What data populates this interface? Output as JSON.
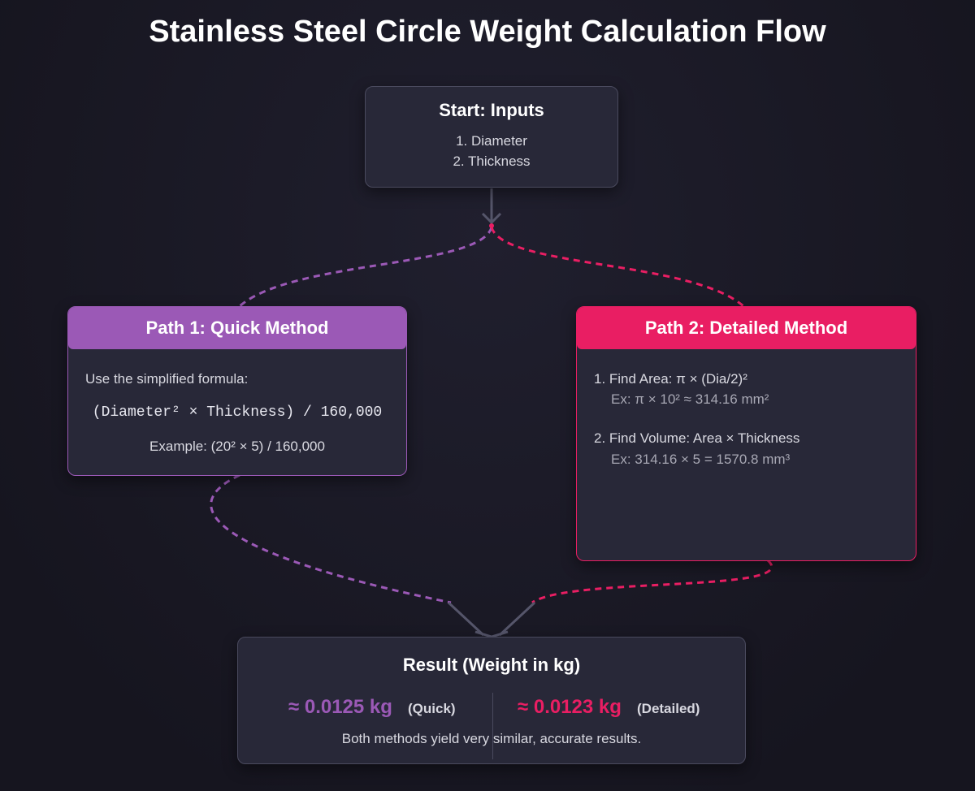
{
  "title": "Stainless Steel Circle Weight Calculation Flow",
  "start": {
    "title": "Start: Inputs",
    "lines": [
      "1. Diameter",
      "2. Thickness"
    ]
  },
  "path1": {
    "title": "Path 1: Quick Method",
    "intro": "Use the simplified formula:",
    "formula": "(Diameter² × Thickness) / 160,000",
    "example": "Example: (20² × 5) / 160,000"
  },
  "path2": {
    "title": "Path 2: Detailed Method",
    "steps": [
      {
        "label": "1. Find Area: π × (Dia/2)²",
        "example": "Ex: π × 10² ≈ 314.16 mm²"
      },
      {
        "label": "2. Find Volume: Area × Thickness",
        "example": "Ex: 314.16 × 5 = 1570.8 mm³"
      }
    ]
  },
  "result": {
    "title": "Result (Weight in kg)",
    "quick": {
      "value": "≈ 0.0125 kg",
      "label": "(Quick)"
    },
    "detailed": {
      "value": "≈ 0.0123 kg",
      "label": "(Detailed)"
    },
    "note": "Both methods yield very similar, accurate results."
  }
}
